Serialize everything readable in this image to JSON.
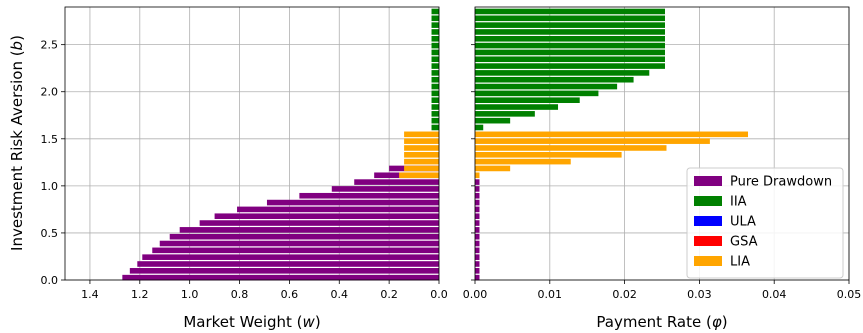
{
  "chart_data": [
    {
      "type": "bar",
      "orientation": "horizontal",
      "xlabel": "Market Weight ($w$)",
      "xlabel_text": "Market Weight (",
      "xlabel_var": "w",
      "xlabel_close": ")",
      "ylabel_text": "Investment Risk Aversion (",
      "ylabel_var": "b",
      "ylabel_close": ")",
      "xlim": [
        1.5,
        0.0
      ],
      "x_inverted": true,
      "ylim": [
        0.0,
        2.9
      ],
      "xticks": [
        "1.4",
        "1.2",
        "1.0",
        "0.8",
        "0.6",
        "0.4",
        "0.2",
        "0.0"
      ],
      "xtick_values": [
        1.4,
        1.2,
        1.0,
        0.8,
        0.6,
        0.4,
        0.2,
        0.0
      ],
      "yticks": [
        "0.0",
        "0.5",
        "1.0",
        "1.5",
        "2.0",
        "2.5"
      ],
      "ytick_values": [
        0.0,
        0.5,
        1.0,
        1.5,
        2.0,
        2.5
      ],
      "grid": true,
      "bar_step": 0.0725,
      "series": [
        {
          "name": "Pure Drawdown",
          "color": "#800080",
          "y": [
            0.025,
            0.0975,
            0.17,
            0.2425,
            0.315,
            0.3875,
            0.46,
            0.5325,
            0.605,
            0.6775,
            0.75,
            0.8225,
            0.895,
            0.9675,
            1.04,
            1.1125,
            1.185
          ],
          "values": [
            1.27,
            1.24,
            1.21,
            1.19,
            1.15,
            1.12,
            1.08,
            1.04,
            0.96,
            0.9,
            0.81,
            0.69,
            0.56,
            0.43,
            0.34,
            0.26,
            0.2
          ]
        },
        {
          "name": "LIA",
          "color": "#ffa500",
          "y": [
            1.1125,
            1.185,
            1.2575,
            1.33,
            1.4025,
            1.475,
            1.5475
          ],
          "values": [
            0.16,
            0.14,
            0.14,
            0.14,
            0.14,
            0.14,
            0.14
          ]
        },
        {
          "name": "IIA",
          "color": "#008000",
          "y": [
            1.62,
            1.6925,
            1.765,
            1.8375,
            1.91,
            1.9825,
            2.055,
            2.1275,
            2.2,
            2.2725,
            2.345,
            2.4175,
            2.49,
            2.5625,
            2.635,
            2.7075,
            2.78,
            2.8525
          ],
          "values": [
            0.03,
            0.03,
            0.03,
            0.03,
            0.03,
            0.03,
            0.03,
            0.03,
            0.03,
            0.03,
            0.03,
            0.03,
            0.03,
            0.03,
            0.03,
            0.03,
            0.03,
            0.03
          ]
        }
      ]
    },
    {
      "type": "bar",
      "orientation": "horizontal",
      "xlabel": "Payment Rate ($\\phi$)",
      "xlabel_text": "Payment Rate (",
      "xlabel_var": "φ",
      "xlabel_close": ")",
      "xlim": [
        0.0,
        0.05
      ],
      "ylim": [
        0.0,
        2.9
      ],
      "xticks": [
        "0.00",
        "0.01",
        "0.02",
        "0.03",
        "0.04",
        "0.05"
      ],
      "xtick_values": [
        0.0,
        0.01,
        0.02,
        0.03,
        0.04,
        0.05
      ],
      "grid": true,
      "shared_y": true,
      "legend": {
        "position": "lower-right",
        "entries": [
          {
            "label": "Pure Drawdown",
            "color": "#800080"
          },
          {
            "label": "IIA",
            "color": "#008000"
          },
          {
            "label": "ULA",
            "color": "#0000ff"
          },
          {
            "label": "GSA",
            "color": "#ff0000"
          },
          {
            "label": "LIA",
            "color": "#ffa500"
          }
        ]
      },
      "series": [
        {
          "name": "Pure Drawdown",
          "color": "#800080",
          "y": [
            0.025,
            0.0975,
            0.17,
            0.2425,
            0.315,
            0.3875,
            0.46,
            0.5325,
            0.605,
            0.6775,
            0.75,
            0.8225,
            0.895,
            0.9675,
            1.04
          ],
          "values": [
            0.0006,
            0.0006,
            0.0006,
            0.0006,
            0.0006,
            0.0006,
            0.0006,
            0.0006,
            0.0006,
            0.0006,
            0.0006,
            0.0006,
            0.0006,
            0.0006,
            0.0006
          ]
        },
        {
          "name": "LIA",
          "color": "#ffa500",
          "y": [
            1.1125,
            1.185,
            1.2575,
            1.33,
            1.4025,
            1.475,
            1.5475
          ],
          "values": [
            0.0006,
            0.0047,
            0.0128,
            0.0196,
            0.0256,
            0.0314,
            0.0365
          ]
        },
        {
          "name": "IIA",
          "color": "#008000",
          "y": [
            1.62,
            1.6925,
            1.765,
            1.8375,
            1.91,
            1.9825,
            2.055,
            2.1275,
            2.2,
            2.2725,
            2.345,
            2.4175,
            2.49,
            2.5625,
            2.635,
            2.7075,
            2.78,
            2.8525
          ],
          "values": [
            0.0011,
            0.0047,
            0.008,
            0.0111,
            0.014,
            0.0165,
            0.019,
            0.0212,
            0.0233,
            0.0254,
            0.0254,
            0.0254,
            0.0254,
            0.0254,
            0.0254,
            0.0254,
            0.0254,
            0.0254
          ]
        }
      ]
    }
  ]
}
